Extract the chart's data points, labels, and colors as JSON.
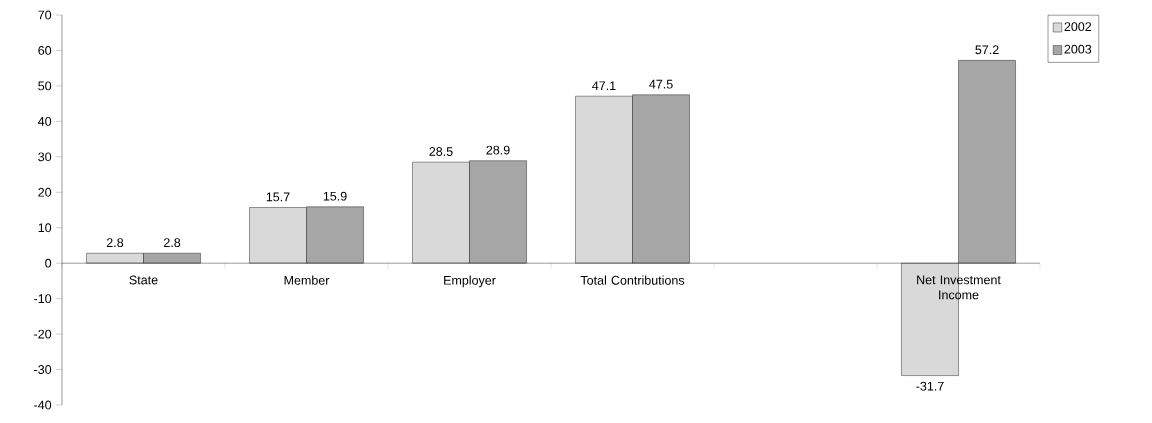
{
  "chart_data": {
    "type": "bar",
    "categories": [
      "State",
      "Member",
      "Employer",
      "Total Contributions",
      null,
      "Net Investment Income"
    ],
    "series": [
      {
        "name": "2002",
        "color": "#d9d9d9",
        "values": [
          2.8,
          15.7,
          28.5,
          47.1,
          null,
          -31.7
        ]
      },
      {
        "name": "2003",
        "color": "#a6a6a6",
        "values": [
          2.8,
          15.9,
          28.9,
          47.5,
          null,
          57.2
        ]
      }
    ],
    "ylim": [
      -40,
      70
    ],
    "yticks": [
      -40,
      -30,
      -20,
      -10,
      0,
      10,
      20,
      30,
      40,
      50,
      60,
      70
    ],
    "data_labels": true,
    "legend": "top right",
    "grid": false
  }
}
